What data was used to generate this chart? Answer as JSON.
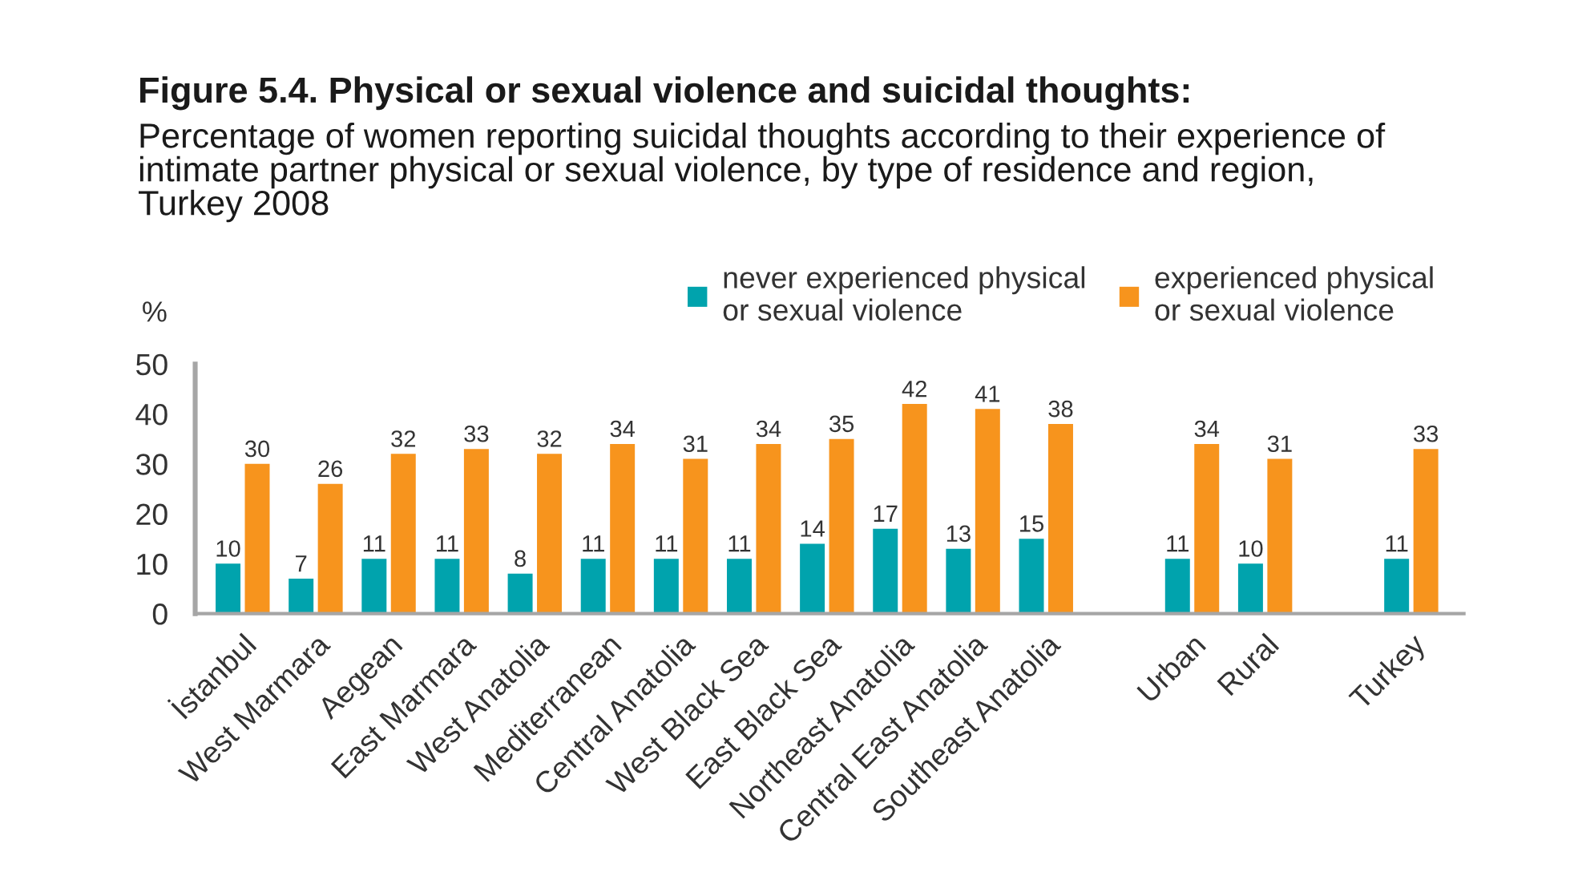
{
  "chart_data": {
    "type": "bar",
    "title": "Figure 5.4. Physical or sexual violence and suicidal thoughts:",
    "subtitle": "Percentage of women reporting suicidal thoughts according to their experience of\nintimate partner physical or sexual violence, by type of residence and region,\nTurkey 2008",
    "ylabel": "%",
    "categories": [
      "İstanbul",
      "West Marmara",
      "Aegean",
      "East Marmara",
      "West Anatolia",
      "Mediterranean",
      "Central Anatolia",
      "West Black Sea",
      "East Black Sea",
      "Northeast Anatolia",
      "Central East Anatolia",
      "Southeast Anatolia",
      null,
      "Urban",
      "Rural",
      null,
      "Turkey"
    ],
    "series": [
      {
        "name": "never experienced physical\nor sexual violence",
        "color": "#00a3ad",
        "values": [
          10,
          7,
          11,
          11,
          8,
          11,
          11,
          11,
          14,
          17,
          13,
          15,
          null,
          11,
          10,
          null,
          11
        ]
      },
      {
        "name": "experienced physical\nor sexual violence",
        "color": "#f7941d",
        "values": [
          30,
          26,
          32,
          33,
          32,
          34,
          31,
          34,
          35,
          42,
          41,
          38,
          null,
          34,
          31,
          null,
          33
        ]
      }
    ],
    "ylim": [
      0,
      50
    ],
    "yticks": [
      0,
      10,
      20,
      30,
      40,
      50
    ],
    "data_labels": true,
    "legend": "top right",
    "grid": false
  }
}
